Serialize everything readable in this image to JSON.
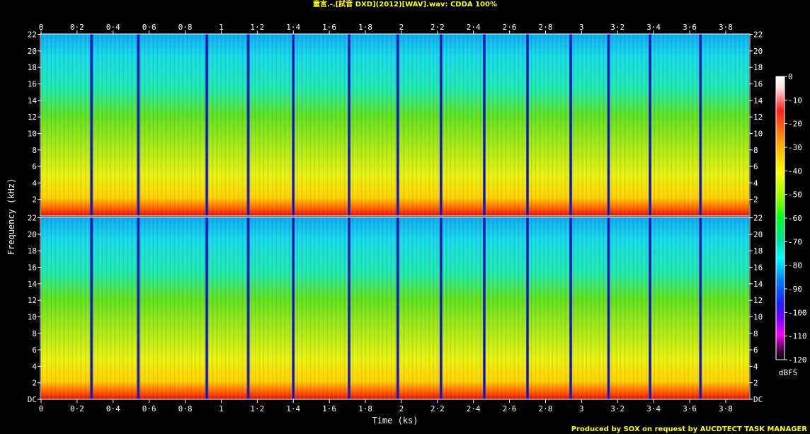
{
  "chart_data": {
    "type": "heatmap",
    "title": "童言.-.[試音 DXD](2012)[WAV].wav: CDDA 100%",
    "xlabel": "Time (ks)",
    "ylabel": "Frequency (kHz)",
    "x_ticks": [
      "0",
      "0·2",
      "0·4",
      "0·6",
      "0·8",
      "1",
      "1·2",
      "1·4",
      "1·6",
      "1·8",
      "2",
      "2·2",
      "2·4",
      "2·6",
      "2·8",
      "3",
      "3·2",
      "3·4",
      "3·6",
      "3·8"
    ],
    "x_tick_values": [
      0,
      0.2,
      0.4,
      0.6,
      0.8,
      1.0,
      1.2,
      1.4,
      1.6,
      1.8,
      2.0,
      2.2,
      2.4,
      2.6,
      2.8,
      3.0,
      3.2,
      3.4,
      3.6,
      3.8
    ],
    "xlim": [
      0,
      3.93
    ],
    "y_ticks_top": [
      "22",
      "20",
      "18",
      "16",
      "14",
      "12",
      "10",
      "8",
      "6",
      "4",
      "2"
    ],
    "y_ticks_bottom": [
      "22",
      "20",
      "18",
      "16",
      "14",
      "12",
      "10",
      "8",
      "6",
      "4",
      "2",
      "DC"
    ],
    "y_tick_values": [
      22,
      20,
      18,
      16,
      14,
      12,
      10,
      8,
      6,
      4,
      2,
      0
    ],
    "ylim": [
      0,
      22.05
    ],
    "channels": 2,
    "colorbar_ticks": [
      "0",
      "-10",
      "-20",
      "-30",
      "-40",
      "-50",
      "-60",
      "-70",
      "-80",
      "-90",
      "-100",
      "-110",
      "-120"
    ],
    "colorbar_values": [
      0,
      -10,
      -20,
      -30,
      -40,
      -50,
      -60,
      -70,
      -80,
      -90,
      -100,
      -110,
      -120
    ],
    "colorbar_label": "dBFS",
    "track_boundaries_ks": [
      0.28,
      0.54,
      0.92,
      1.15,
      1.4,
      1.71,
      1.98,
      2.22,
      2.46,
      2.7,
      2.94,
      3.15,
      3.38,
      3.66
    ],
    "footer": "Produced by SOX on request by AUCDTECT TASK MANAGER"
  },
  "colors": {
    "title": "#ffff00",
    "footer": "#ffff00",
    "axis": "#ffffff"
  }
}
